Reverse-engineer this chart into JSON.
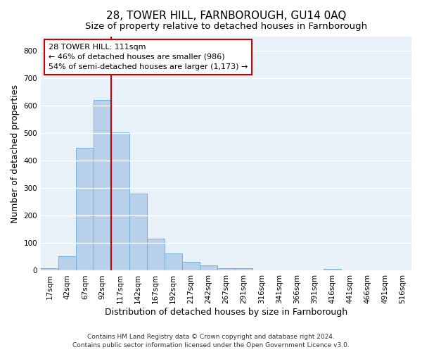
{
  "title_line1": "28, TOWER HILL, FARNBOROUGH, GU14 0AQ",
  "title_line2": "Size of property relative to detached houses in Farnborough",
  "xlabel": "Distribution of detached houses by size in Farnborough",
  "ylabel": "Number of detached properties",
  "categories": [
    "17sqm",
    "42sqm",
    "67sqm",
    "92sqm",
    "117sqm",
    "142sqm",
    "167sqm",
    "192sqm",
    "217sqm",
    "242sqm",
    "267sqm",
    "291sqm",
    "316sqm",
    "341sqm",
    "366sqm",
    "391sqm",
    "416sqm",
    "441sqm",
    "466sqm",
    "491sqm",
    "516sqm"
  ],
  "values": [
    10,
    52,
    447,
    621,
    503,
    280,
    117,
    62,
    33,
    18,
    8,
    8,
    0,
    0,
    0,
    0,
    7,
    0,
    0,
    0,
    0
  ],
  "bar_color": "#b8d0ea",
  "bar_edge_color": "#6aabd2",
  "vline_index": 4,
  "vline_color": "#cc0000",
  "annotation_text": "28 TOWER HILL: 111sqm\n← 46% of detached houses are smaller (986)\n54% of semi-detached houses are larger (1,173) →",
  "annotation_box_color": "#ffffff",
  "annotation_box_edge": "#cc0000",
  "ylim": [
    0,
    850
  ],
  "yticks": [
    0,
    100,
    200,
    300,
    400,
    500,
    600,
    700,
    800
  ],
  "bg_color": "#e8f0f8",
  "grid_color": "#ffffff",
  "footer_line1": "Contains HM Land Registry data © Crown copyright and database right 2024.",
  "footer_line2": "Contains public sector information licensed under the Open Government Licence v3.0.",
  "title_fontsize": 11,
  "subtitle_fontsize": 9.5,
  "axis_label_fontsize": 9,
  "tick_fontsize": 7.5,
  "annotation_fontsize": 8,
  "footer_fontsize": 6.5
}
